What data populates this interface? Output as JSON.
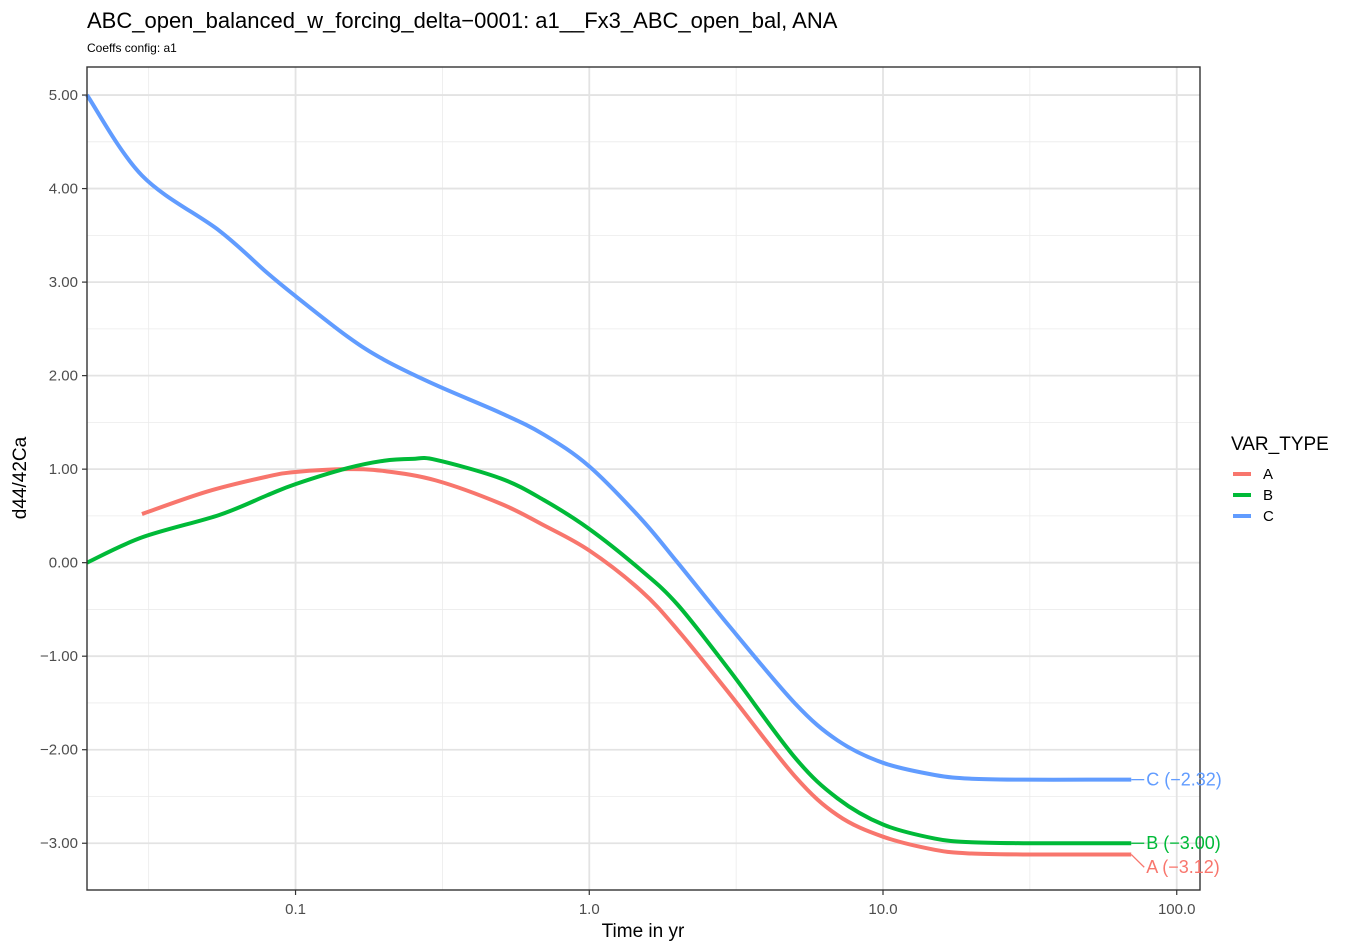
{
  "chart_data": {
    "type": "line",
    "title": "ABC_open_balanced_w_forcing_delta−0001: a1__Fx3_ABC_open_bal, ANA",
    "subtitle": "Coeffs config: a1",
    "xlabel": "Time in yr",
    "ylabel": "d44/42Ca",
    "x_scale": "log10",
    "xlim": [
      0.0195,
      120
    ],
    "ylim": [
      -3.5,
      5.3
    ],
    "x_ticks": [
      0.1,
      1.0,
      10.0,
      100.0
    ],
    "x_tick_labels": [
      "0.1",
      "1.0",
      "10.0",
      "100.0"
    ],
    "y_ticks": [
      -3,
      -2,
      -1,
      0,
      1,
      2,
      3,
      4,
      5
    ],
    "y_tick_labels": [
      "−3.00",
      "−2.00",
      "−1.00",
      "0.00",
      "1.00",
      "2.00",
      "3.00",
      "4.00",
      "5.00"
    ],
    "grid": true,
    "legend": {
      "title": "VAR_TYPE",
      "position": "right"
    },
    "series": [
      {
        "name": "A",
        "color": "#F8766D",
        "end_label": "A (−3.12)",
        "x": [
          0.03,
          0.05,
          0.08,
          0.1,
          0.15,
          0.2,
          0.3,
          0.5,
          0.7,
          1.0,
          1.5,
          2.0,
          3.0,
          5.0,
          7.0,
          10.0,
          15.0,
          20.0,
          30.0,
          50.0,
          70.0
        ],
        "y": [
          0.52,
          0.76,
          0.92,
          0.97,
          1.0,
          0.98,
          0.88,
          0.63,
          0.4,
          0.13,
          -0.3,
          -0.72,
          -1.4,
          -2.28,
          -2.7,
          -2.93,
          -3.07,
          -3.11,
          -3.12,
          -3.12,
          -3.12
        ]
      },
      {
        "name": "B",
        "color": "#00BA38",
        "end_label": "B (−3.00)",
        "x": [
          0.0195,
          0.03,
          0.055,
          0.08,
          0.1,
          0.15,
          0.2,
          0.25,
          0.3,
          0.5,
          0.7,
          1.0,
          1.5,
          2.0,
          3.0,
          5.0,
          7.0,
          10.0,
          15.0,
          20.0,
          30.0,
          50.0,
          70.0
        ],
        "y": [
          0.0,
          0.27,
          0.51,
          0.72,
          0.84,
          1.01,
          1.09,
          1.11,
          1.1,
          0.9,
          0.67,
          0.36,
          -0.08,
          -0.45,
          -1.15,
          -2.08,
          -2.52,
          -2.8,
          -2.95,
          -2.99,
          -3.0,
          -3.0,
          -3.0
        ]
      },
      {
        "name": "C",
        "color": "#619CFF",
        "end_label": "C (−2.32)",
        "x": [
          0.0195,
          0.03,
          0.055,
          0.08,
          0.1,
          0.15,
          0.2,
          0.3,
          0.5,
          0.7,
          1.0,
          1.5,
          2.0,
          3.0,
          5.0,
          7.0,
          10.0,
          15.0,
          20.0,
          30.0,
          50.0,
          70.0
        ],
        "y": [
          5.0,
          4.14,
          3.55,
          3.1,
          2.85,
          2.42,
          2.17,
          1.9,
          1.6,
          1.37,
          1.03,
          0.47,
          0.0,
          -0.68,
          -1.5,
          -1.9,
          -2.14,
          -2.27,
          -2.31,
          -2.32,
          -2.32,
          -2.32
        ]
      }
    ]
  }
}
